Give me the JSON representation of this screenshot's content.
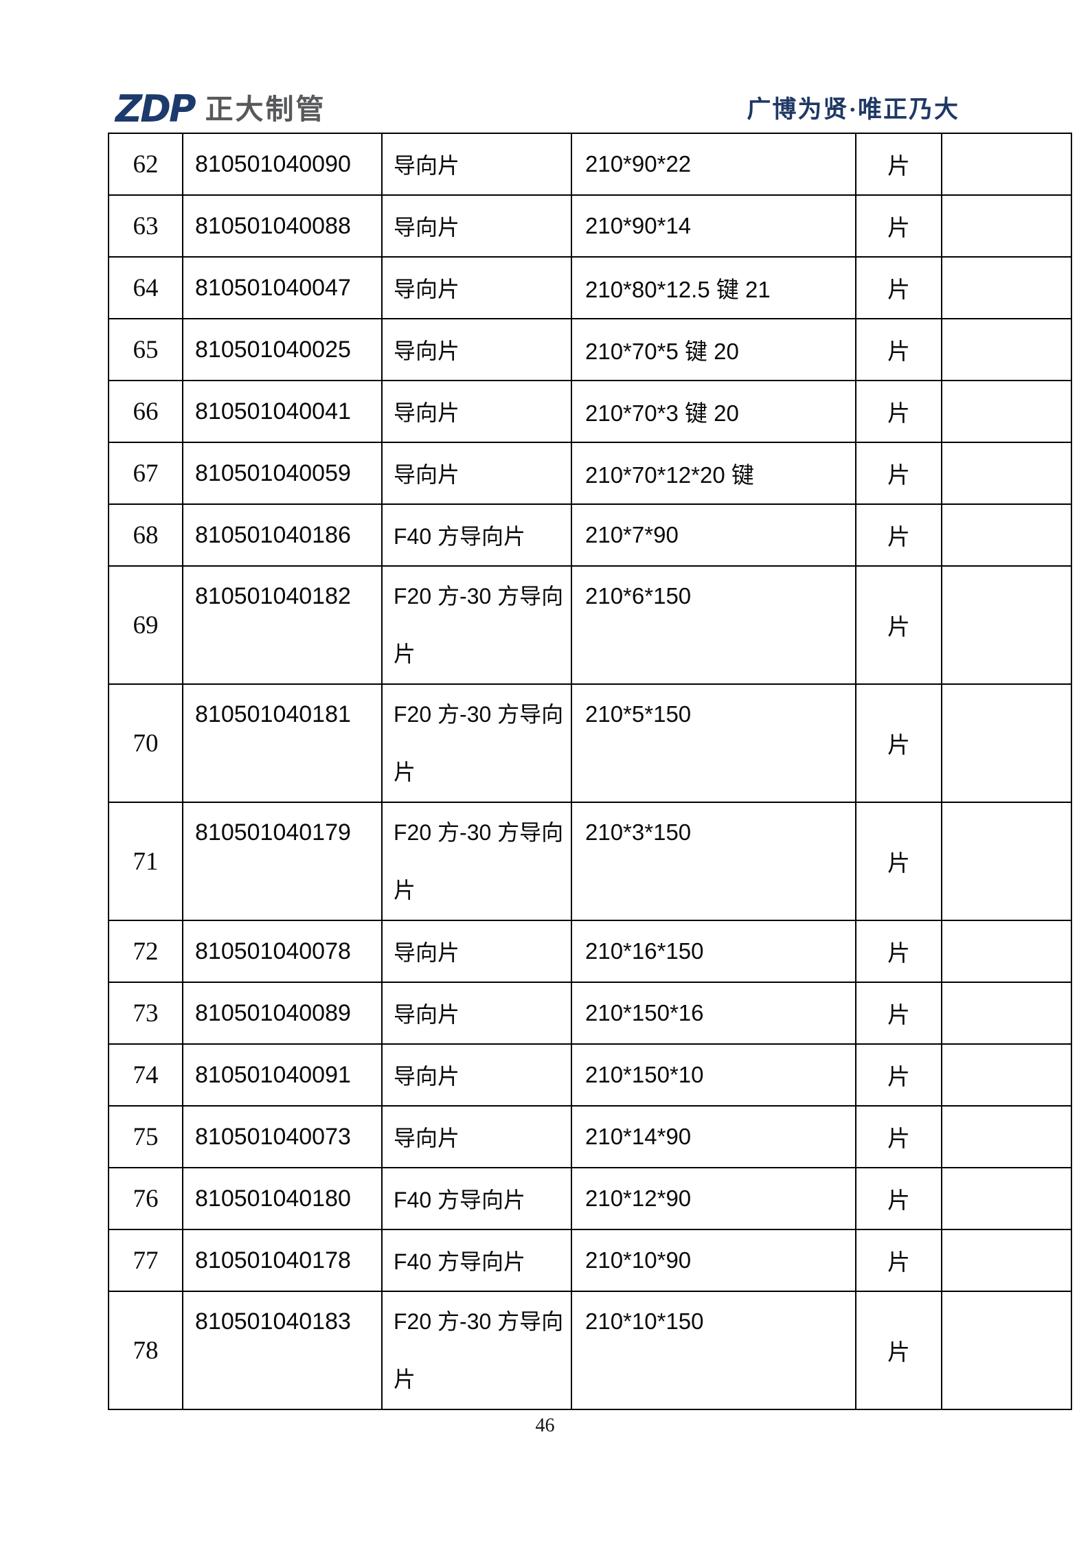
{
  "page": {
    "header": {
      "logo": {
        "zdp": "ZDP",
        "company": "正大制管"
      },
      "slogan": "广博为贤·唯正乃大"
    },
    "table": {
      "rows": [
        {
          "no": "62",
          "code": "810501040090",
          "name": "导向片",
          "spec": "210*90*22",
          "unit": "片",
          "remark": ""
        },
        {
          "no": "63",
          "code": "810501040088",
          "name": "导向片",
          "spec": "210*90*14",
          "unit": "片",
          "remark": ""
        },
        {
          "no": "64",
          "code": "810501040047",
          "name": "导向片",
          "spec": "210*80*12.5 键 21",
          "unit": "片",
          "remark": ""
        },
        {
          "no": "65",
          "code": "810501040025",
          "name": "导向片",
          "spec": "210*70*5 键 20",
          "unit": "片",
          "remark": ""
        },
        {
          "no": "66",
          "code": "810501040041",
          "name": "导向片",
          "spec": "210*70*3 键 20",
          "unit": "片",
          "remark": ""
        },
        {
          "no": "67",
          "code": "810501040059",
          "name": "导向片",
          "spec": "210*70*12*20 键",
          "unit": "片",
          "remark": ""
        },
        {
          "no": "68",
          "code": "810501040186",
          "name": "F40 方导向片",
          "spec": "210*7*90",
          "unit": "片",
          "remark": ""
        },
        {
          "no": "69",
          "code": "810501040182",
          "name": "F20 方-30 方导向\n片",
          "spec": "210*6*150",
          "unit": "片",
          "remark": ""
        },
        {
          "no": "70",
          "code": "810501040181",
          "name": "F20 方-30 方导向\n片",
          "spec": "210*5*150",
          "unit": "片",
          "remark": ""
        },
        {
          "no": "71",
          "code": "810501040179",
          "name": "F20 方-30 方导向\n片",
          "spec": "210*3*150",
          "unit": "片",
          "remark": ""
        },
        {
          "no": "72",
          "code": "810501040078",
          "name": "导向片",
          "spec": "210*16*150",
          "unit": "片",
          "remark": ""
        },
        {
          "no": "73",
          "code": "810501040089",
          "name": "导向片",
          "spec": "210*150*16",
          "unit": "片",
          "remark": ""
        },
        {
          "no": "74",
          "code": "810501040091",
          "name": "导向片",
          "spec": "210*150*10",
          "unit": "片",
          "remark": ""
        },
        {
          "no": "75",
          "code": "810501040073",
          "name": "导向片",
          "spec": "210*14*90",
          "unit": "片",
          "remark": ""
        },
        {
          "no": "76",
          "code": "810501040180",
          "name": "F40 方导向片",
          "spec": "210*12*90",
          "unit": "片",
          "remark": ""
        },
        {
          "no": "77",
          "code": "810501040178",
          "name": "F40 方导向片",
          "spec": "210*10*90",
          "unit": "片",
          "remark": ""
        },
        {
          "no": "78",
          "code": "810501040183",
          "name": "F20 方-30 方导向\n片",
          "spec": "210*10*150",
          "unit": "片",
          "remark": ""
        }
      ]
    },
    "footer": {
      "page_number": "46"
    }
  },
  "colors": {
    "logo_navy": "#1c3a6c",
    "logo_gray": "#58595b",
    "slogan_navy": "#1f3864",
    "table_border": "#000000"
  }
}
